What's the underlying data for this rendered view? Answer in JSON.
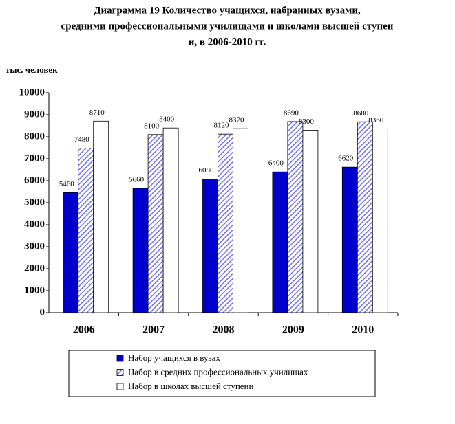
{
  "chart_data": {
    "type": "bar",
    "title": [
      "Диаграмма 19 Количество учащихся, набранных вузами,",
      "средними профессиональными училищами и школами высшей ступен",
      "и, в 2006-2010 гг."
    ],
    "y_label": "тыс. человек",
    "categories": [
      "2006",
      "2007",
      "2008",
      "2009",
      "2010"
    ],
    "series": [
      {
        "name": "Набор учащихся в вузах",
        "color": "#0000cc",
        "values": [
          5460,
          5660,
          6080,
          6400,
          6620
        ]
      },
      {
        "name": "Набор в средних профессиональных училищах",
        "color": "#7070f0",
        "pattern": "diagonal",
        "values": [
          7480,
          8100,
          8120,
          8690,
          8680
        ]
      },
      {
        "name": "Набор в школах высшей ступени",
        "color": "#ffffff",
        "values": [
          8710,
          8400,
          8370,
          8300,
          8360
        ]
      }
    ],
    "ylim": [
      0,
      10000
    ],
    "yticks": [
      0,
      1000,
      2000,
      3000,
      4000,
      5000,
      6000,
      7000,
      8000,
      9000,
      10000
    ],
    "grid": false,
    "legend": "bottom"
  }
}
